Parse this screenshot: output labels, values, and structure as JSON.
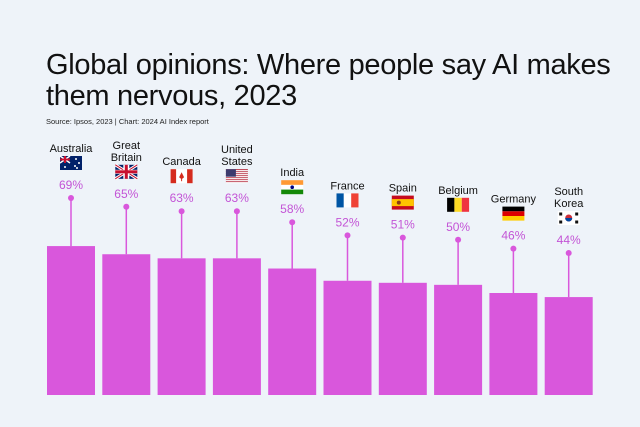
{
  "chart_data": {
    "type": "bar",
    "title": "Global opinions: Where people say AI makes them nervous, 2023",
    "source": "Source: Ipsos, 2023 | Chart: 2024 AI Index report",
    "categories": [
      [
        "Australia"
      ],
      [
        "Great",
        "Britain"
      ],
      [
        "Canada"
      ],
      [
        "United",
        "States"
      ],
      [
        "India"
      ],
      [
        "France"
      ],
      [
        "Spain"
      ],
      [
        "Belgium"
      ],
      [
        "Germany"
      ],
      [
        "South",
        "Korea"
      ]
    ],
    "flags": [
      "australia",
      "uk",
      "canada",
      "usa",
      "india",
      "france",
      "spain",
      "belgium",
      "germany",
      "south-korea"
    ],
    "values": [
      69,
      65,
      63,
      63,
      58,
      52,
      51,
      50,
      46,
      44
    ],
    "value_labels": [
      "69%",
      "65%",
      "63%",
      "63%",
      "58%",
      "52%",
      "51%",
      "50%",
      "46%",
      "44%"
    ],
    "bar_color": "#d957dc",
    "label_color": "#c354d6",
    "background": "#eef3f9",
    "grid": false,
    "legend": "none"
  }
}
